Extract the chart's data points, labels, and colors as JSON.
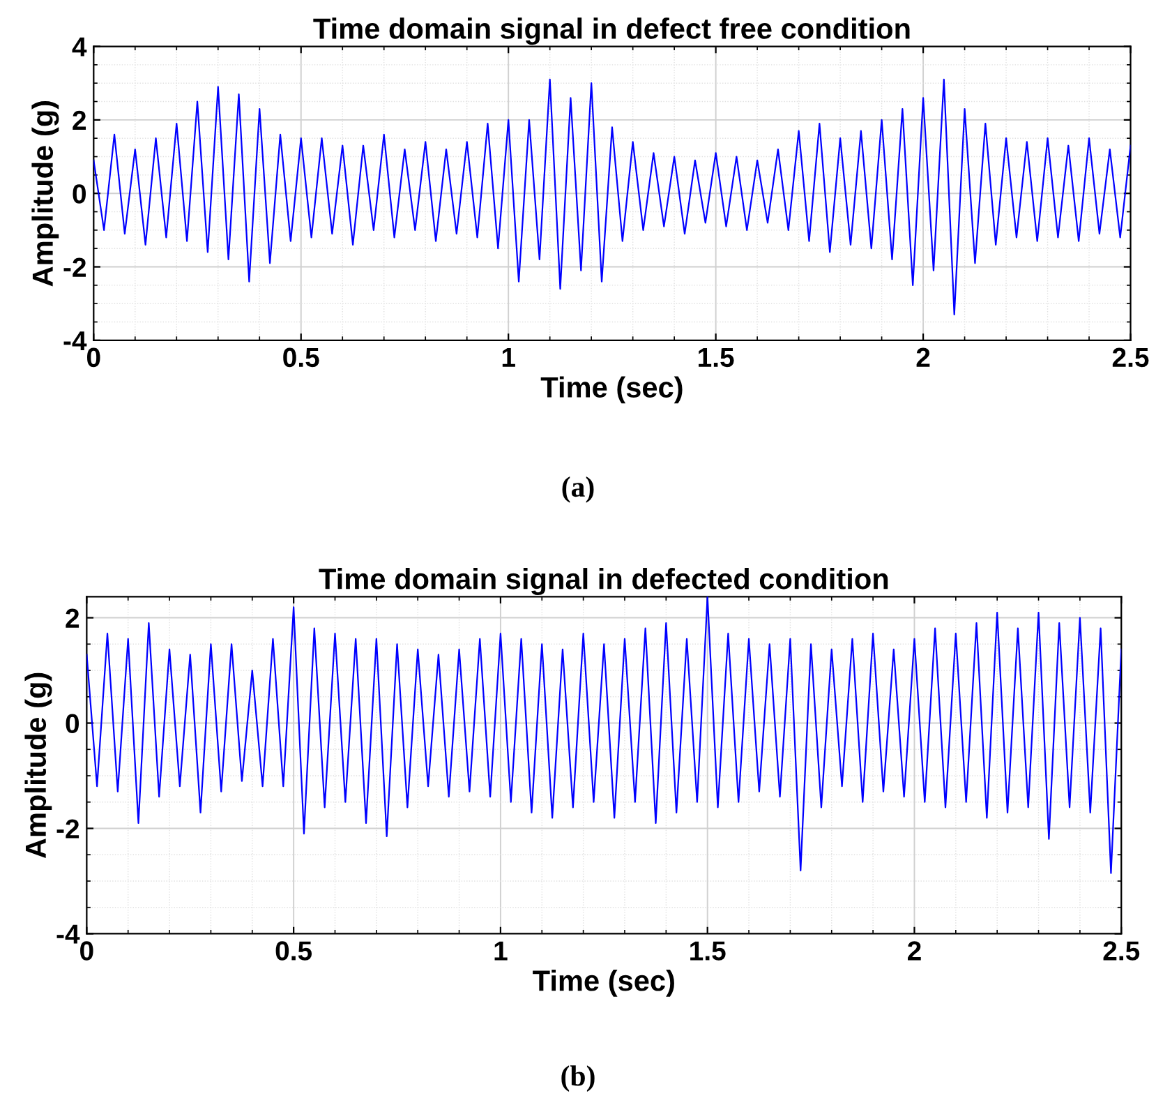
{
  "chart_data": [
    {
      "type": "line",
      "title": "Time domain signal in defect free condition",
      "xlabel": "Time (sec)",
      "ylabel": "Amplitude (g)",
      "annotations": [
        "(a)"
      ],
      "xlim": [
        0,
        2.5
      ],
      "xticks": [
        0,
        0.5,
        1,
        1.5,
        2,
        2.5
      ],
      "ylim": [
        -4,
        4
      ],
      "yticks": [
        -4,
        -2,
        0,
        2,
        4
      ],
      "grid": true,
      "legend": false,
      "marker": "none",
      "line_style": "solid",
      "x": [
        0,
        0.025,
        0.05,
        0.075,
        0.1,
        0.125,
        0.15,
        0.175,
        0.2,
        0.225,
        0.25,
        0.275,
        0.3,
        0.325,
        0.35,
        0.375,
        0.4,
        0.425,
        0.45,
        0.475,
        0.5,
        0.525,
        0.55,
        0.575,
        0.6,
        0.625,
        0.65,
        0.675,
        0.7,
        0.725,
        0.75,
        0.775,
        0.8,
        0.825,
        0.85,
        0.875,
        0.9,
        0.925,
        0.95,
        0.975,
        1,
        1.025,
        1.05,
        1.075,
        1.1,
        1.125,
        1.15,
        1.175,
        1.2,
        1.225,
        1.25,
        1.275,
        1.3,
        1.325,
        1.35,
        1.375,
        1.4,
        1.425,
        1.45,
        1.475,
        1.5,
        1.525,
        1.55,
        1.575,
        1.6,
        1.625,
        1.65,
        1.675,
        1.7,
        1.725,
        1.75,
        1.775,
        1.8,
        1.825,
        1.85,
        1.875,
        1.9,
        1.925,
        1.95,
        1.975,
        2,
        2.025,
        2.05,
        2.075,
        2.1,
        2.125,
        2.15,
        2.175,
        2.2,
        2.225,
        2.25,
        2.275,
        2.3,
        2.325,
        2.35,
        2.375,
        2.4,
        2.425,
        2.45,
        2.475,
        2.5
      ],
      "series": [
        {
          "color": "#0000ff",
          "values": [
            0.9,
            -1.0,
            1.6,
            -1.1,
            1.2,
            -1.4,
            1.5,
            -1.2,
            1.9,
            -1.3,
            2.5,
            -1.6,
            2.9,
            -1.8,
            2.7,
            -2.4,
            2.3,
            -1.9,
            1.6,
            -1.3,
            1.5,
            -1.2,
            1.5,
            -1.1,
            1.3,
            -1.4,
            1.3,
            -1.0,
            1.6,
            -1.2,
            1.2,
            -1.0,
            1.4,
            -1.3,
            1.2,
            -1.1,
            1.4,
            -1.2,
            1.9,
            -1.5,
            2.0,
            -2.4,
            2.0,
            -1.8,
            3.1,
            -2.6,
            2.6,
            -2.1,
            3.0,
            -2.4,
            1.8,
            -1.3,
            1.4,
            -1.0,
            1.1,
            -0.9,
            1.0,
            -1.1,
            0.9,
            -0.8,
            1.1,
            -0.9,
            1.0,
            -1.0,
            0.9,
            -0.8,
            1.2,
            -1.0,
            1.7,
            -1.3,
            1.9,
            -1.6,
            1.5,
            -1.4,
            1.7,
            -1.5,
            2.0,
            -1.8,
            2.3,
            -2.5,
            2.6,
            -2.1,
            3.1,
            -3.3,
            2.3,
            -1.9,
            1.9,
            -1.4,
            1.5,
            -1.2,
            1.4,
            -1.3,
            1.5,
            -1.2,
            1.3,
            -1.3,
            1.5,
            -1.1,
            1.2,
            -1.2,
            1.3
          ]
        }
      ]
    },
    {
      "type": "line",
      "title": "Time domain signal in defected condition",
      "xlabel": "Time (sec)",
      "ylabel": "Amplitude (g)",
      "annotations": [
        "(b)"
      ],
      "xlim": [
        0,
        2.5
      ],
      "xticks": [
        0,
        0.5,
        1,
        1.5,
        2,
        2.5
      ],
      "ylim": [
        -4,
        2.4
      ],
      "yticks": [
        -4,
        -2,
        0,
        2
      ],
      "grid": true,
      "legend": false,
      "marker": "none",
      "line_style": "solid",
      "x": [
        0,
        0.025,
        0.05,
        0.075,
        0.1,
        0.125,
        0.15,
        0.175,
        0.2,
        0.225,
        0.25,
        0.275,
        0.3,
        0.325,
        0.35,
        0.375,
        0.4,
        0.425,
        0.45,
        0.475,
        0.5,
        0.525,
        0.55,
        0.575,
        0.6,
        0.625,
        0.65,
        0.675,
        0.7,
        0.725,
        0.75,
        0.775,
        0.8,
        0.825,
        0.85,
        0.875,
        0.9,
        0.925,
        0.95,
        0.975,
        1,
        1.025,
        1.05,
        1.075,
        1.1,
        1.125,
        1.15,
        1.175,
        1.2,
        1.225,
        1.25,
        1.275,
        1.3,
        1.325,
        1.35,
        1.375,
        1.4,
        1.425,
        1.45,
        1.475,
        1.5,
        1.525,
        1.55,
        1.575,
        1.6,
        1.625,
        1.65,
        1.675,
        1.7,
        1.725,
        1.75,
        1.775,
        1.8,
        1.825,
        1.85,
        1.875,
        1.9,
        1.925,
        1.95,
        1.975,
        2,
        2.025,
        2.05,
        2.075,
        2.1,
        2.125,
        2.15,
        2.175,
        2.2,
        2.225,
        2.25,
        2.275,
        2.3,
        2.325,
        2.35,
        2.375,
        2.4,
        2.425,
        2.45,
        2.475,
        2.5
      ],
      "series": [
        {
          "color": "#0000ff",
          "values": [
            1.3,
            -1.2,
            1.7,
            -1.3,
            1.6,
            -1.9,
            1.9,
            -1.4,
            1.4,
            -1.2,
            1.3,
            -1.7,
            1.5,
            -1.3,
            1.5,
            -1.1,
            1.0,
            -1.2,
            1.6,
            -1.2,
            2.2,
            -2.1,
            1.8,
            -1.6,
            1.7,
            -1.5,
            1.6,
            -1.9,
            1.6,
            -2.15,
            1.5,
            -1.6,
            1.4,
            -1.2,
            1.3,
            -1.4,
            1.4,
            -1.3,
            1.6,
            -1.4,
            1.7,
            -1.5,
            1.6,
            -1.7,
            1.5,
            -1.8,
            1.4,
            -1.6,
            1.7,
            -1.5,
            1.5,
            -1.8,
            1.6,
            -1.5,
            1.8,
            -1.9,
            1.9,
            -1.7,
            1.6,
            -1.5,
            2.4,
            -1.6,
            1.7,
            -1.5,
            1.6,
            -1.3,
            1.5,
            -1.4,
            1.6,
            -2.8,
            1.5,
            -1.6,
            1.4,
            -1.2,
            1.6,
            -1.5,
            1.7,
            -1.3,
            1.4,
            -1.4,
            1.6,
            -1.5,
            1.8,
            -1.6,
            1.7,
            -1.5,
            1.9,
            -1.8,
            2.1,
            -1.7,
            1.8,
            -1.6,
            2.1,
            -2.2,
            1.9,
            -1.6,
            2.0,
            -1.7,
            1.8,
            -2.85,
            1.4
          ]
        }
      ]
    }
  ]
}
